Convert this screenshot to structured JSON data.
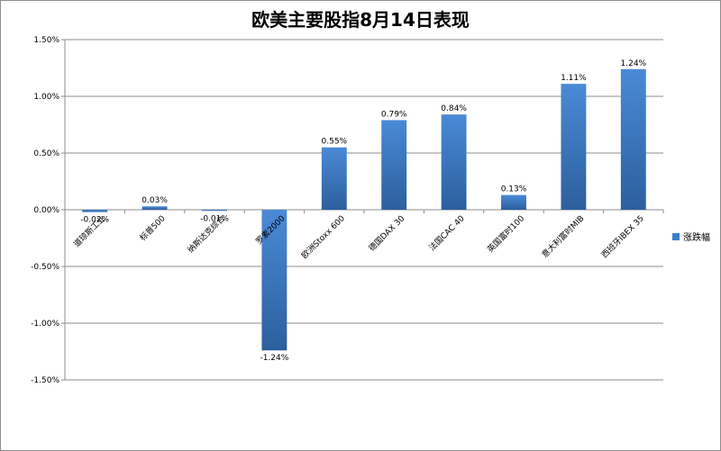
{
  "chart_data": {
    "type": "bar",
    "title": "欧美主要股指8月14日表现",
    "xlabel": "",
    "ylabel": "",
    "ylim": [
      -1.5,
      1.5
    ],
    "ytick_values": [
      -1.5,
      -1.0,
      -0.5,
      0.0,
      0.5,
      1.0,
      1.5
    ],
    "ytick_labels": [
      "-1.50%",
      "-1.00%",
      "-0.50%",
      "0.00%",
      "0.50%",
      "1.00%",
      "1.50%"
    ],
    "grid": true,
    "legend_position": "right",
    "categories": [
      "道琼斯工业",
      "标普500",
      "纳斯达克综合",
      "罗素2000",
      "欧洲Stoxx 600",
      "德国DAX 30",
      "法国CAC 40",
      "英国富时100",
      "意大利富时MIB",
      "西班牙IBEX 35"
    ],
    "series": [
      {
        "name": "涨跌幅",
        "values": [
          -0.02,
          0.03,
          -0.01,
          -1.24,
          0.55,
          0.79,
          0.84,
          0.13,
          1.11,
          1.24
        ],
        "labels": [
          "-0.02%",
          "0.03%",
          "-0.01%",
          "-1.24%",
          "0.55%",
          "0.79%",
          "0.84%",
          "0.13%",
          "1.11%",
          "1.24%"
        ],
        "color": "#3f7fc9"
      }
    ]
  },
  "colors": {
    "bar_top": "#4a8ad6",
    "bar_bottom": "#2c5f9e",
    "gridline": "#8c8c8c",
    "axis": "#8c8c8c"
  }
}
